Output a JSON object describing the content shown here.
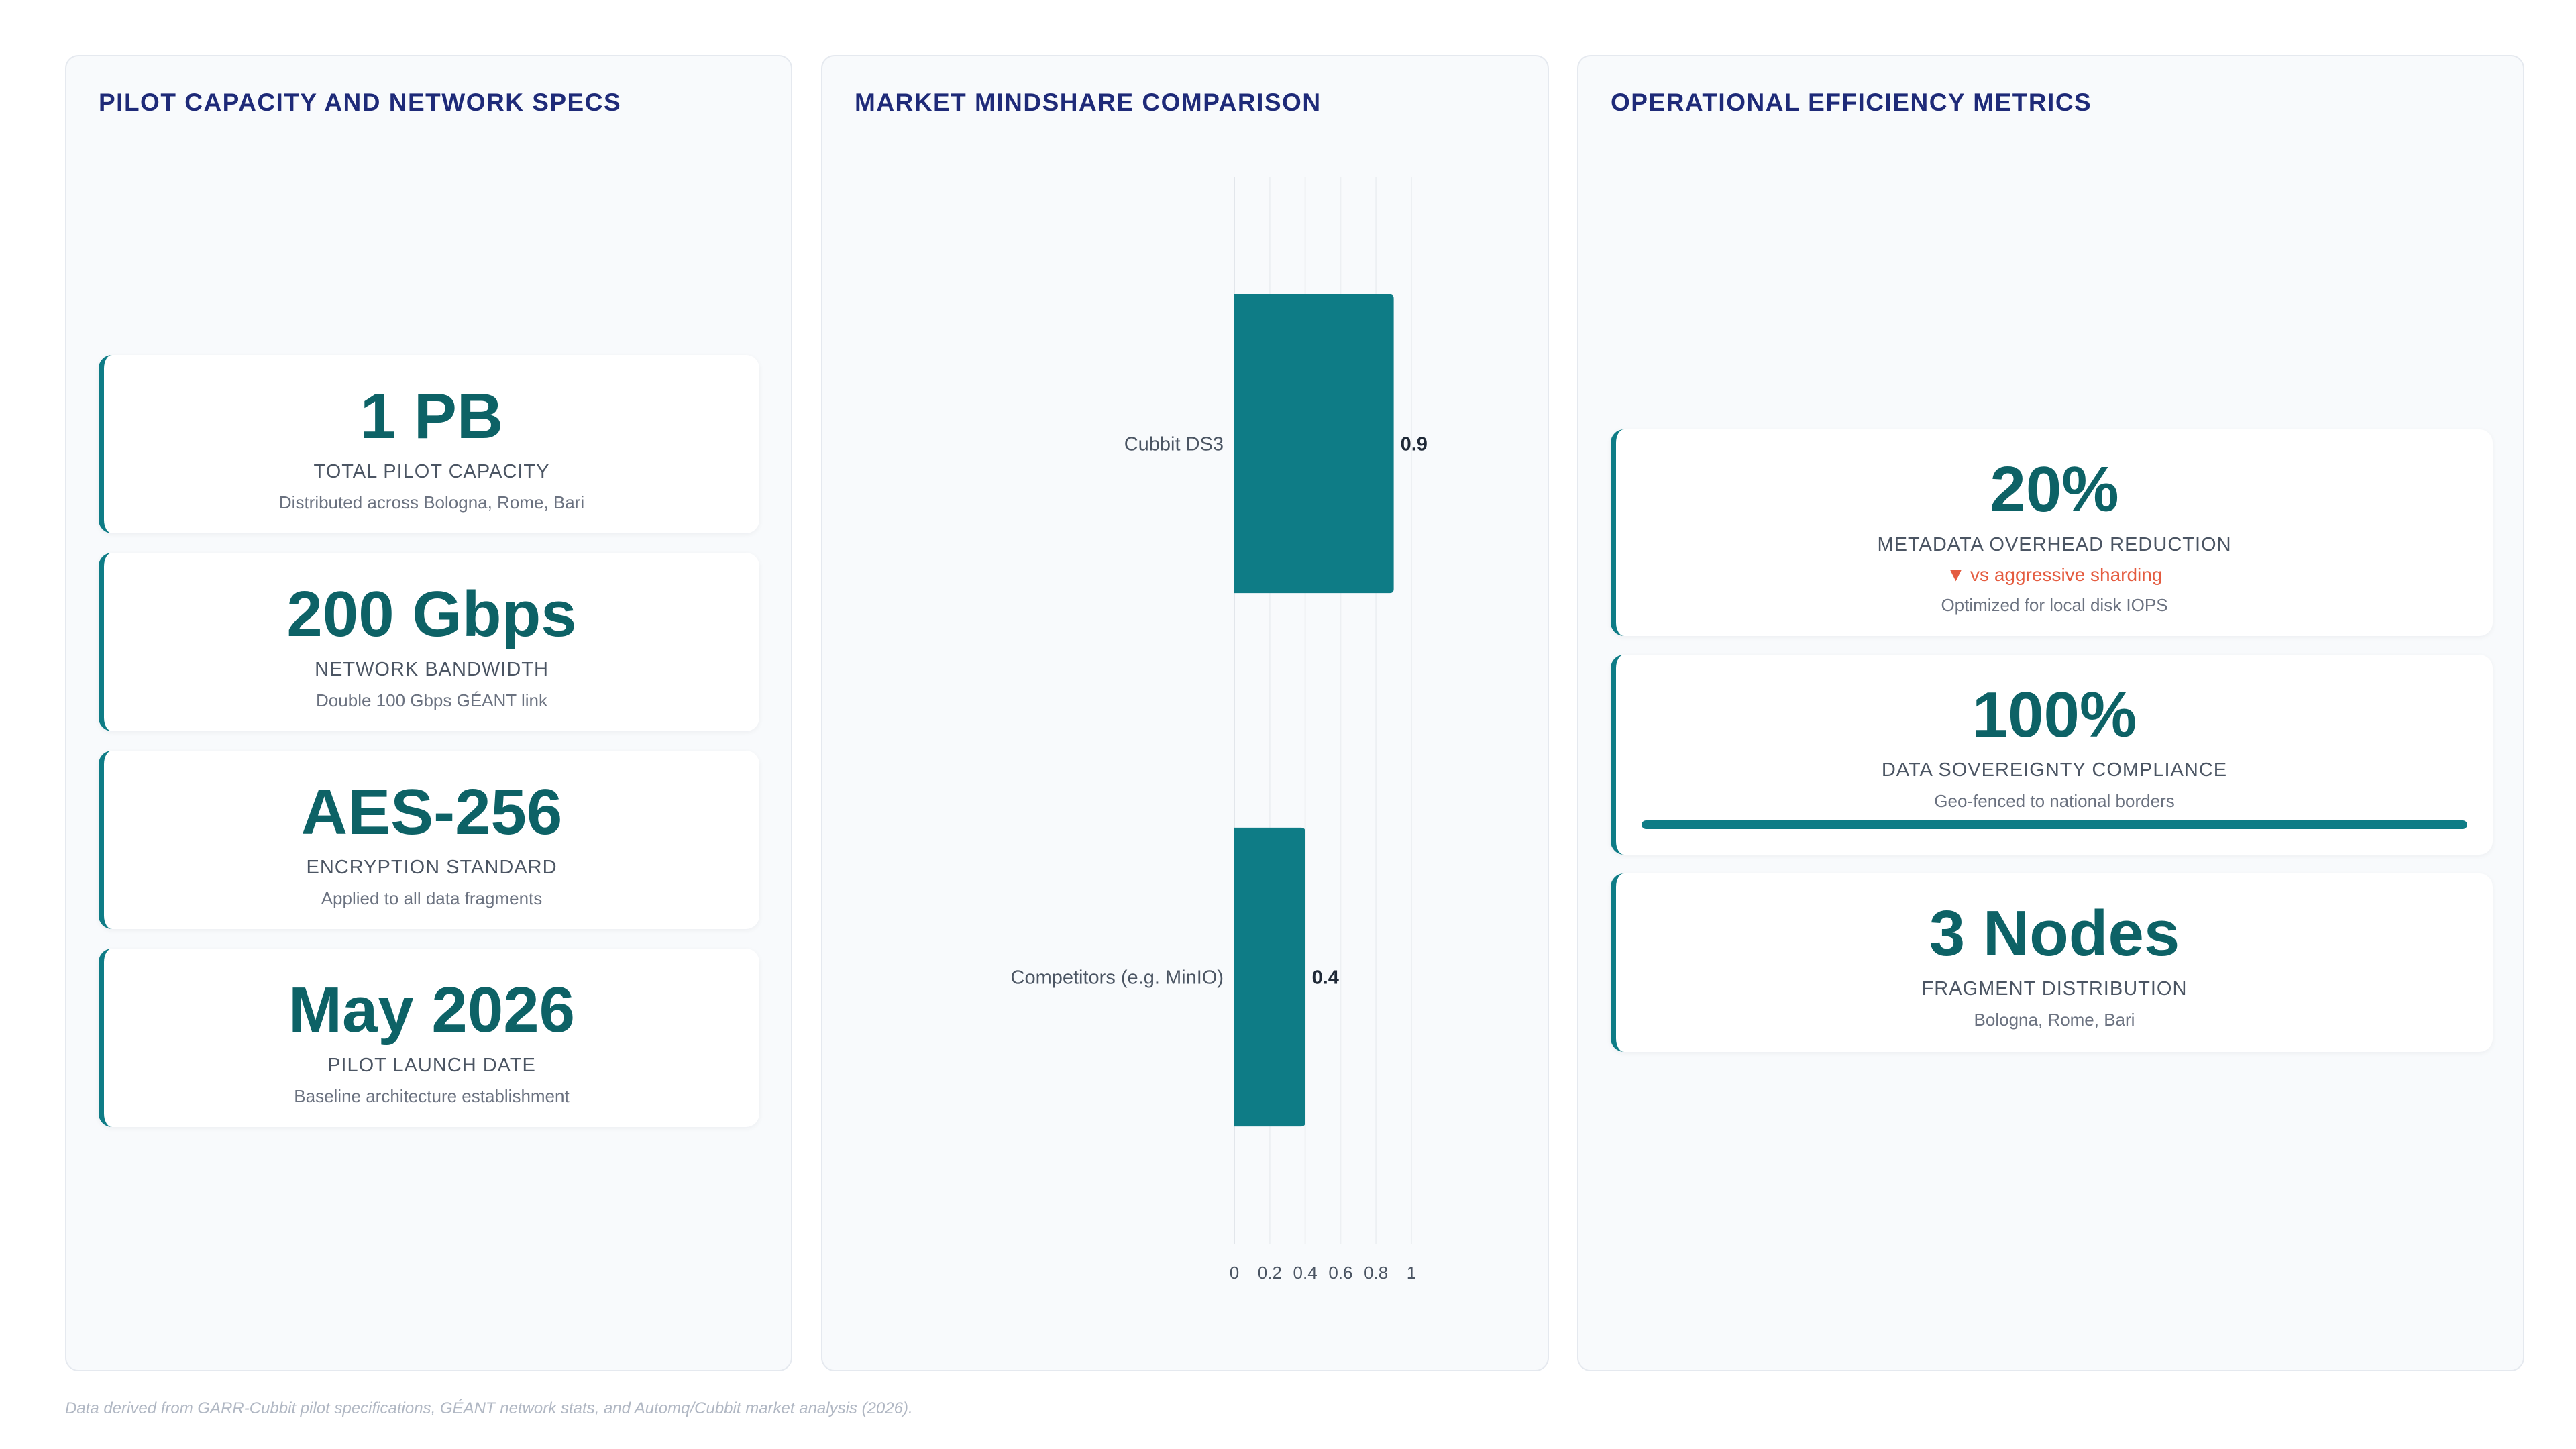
{
  "left_panel": {
    "title": "PILOT CAPACITY AND NETWORK SPECS",
    "cards": [
      {
        "value": "1 PB",
        "label": "TOTAL PILOT CAPACITY",
        "note": "Distributed across Bologna, Rome, Bari"
      },
      {
        "value": "200 Gbps",
        "label": "NETWORK BANDWIDTH",
        "note": "Double 100 Gbps GÉANT link"
      },
      {
        "value": "AES-256",
        "label": "ENCRYPTION STANDARD",
        "note": "Applied to all data fragments"
      },
      {
        "value": "May 2026",
        "label": "PILOT LAUNCH DATE",
        "note": "Baseline architecture establishment"
      }
    ]
  },
  "middle_panel": {
    "title": "MARKET MINDSHARE COMPARISON"
  },
  "right_panel": {
    "title": "OPERATIONAL EFFICIENCY METRICS",
    "cards": [
      {
        "value": "20%",
        "label": "METADATA OVERHEAD REDUCTION",
        "alert": "▼ vs aggressive sharding",
        "note": "Optimized for local disk IOPS"
      },
      {
        "value": "100%",
        "label": "DATA SOVEREIGNTY COMPLIANCE",
        "note": "Geo-fenced to national borders",
        "progress": 1.0
      },
      {
        "value": "3 Nodes",
        "label": "FRAGMENT DISTRIBUTION",
        "note": "Bologna, Rome, Bari"
      }
    ]
  },
  "colors": {
    "accent": "#0e7c86",
    "value_text": "#0d6266",
    "title_text": "#1e2a78",
    "alert": "#e45b3f"
  },
  "chart_data": {
    "type": "bar",
    "orientation": "horizontal",
    "categories": [
      "Cubbit DS3",
      "Competitors (e.g. MinIO)"
    ],
    "values": [
      0.9,
      0.4
    ],
    "xlim": [
      0,
      1
    ],
    "xticks": [
      "0",
      "0.2",
      "0.4",
      "0.6",
      "0.8",
      "1"
    ],
    "data_labels": [
      "0.9",
      "0.4"
    ],
    "grid": "vertical",
    "legend": "none",
    "bar_color": "#0e7c86"
  },
  "footnote": "Data derived from GARR-Cubbit pilot specifications, GÉANT network stats, and Automq/Cubbit market analysis (2026)."
}
